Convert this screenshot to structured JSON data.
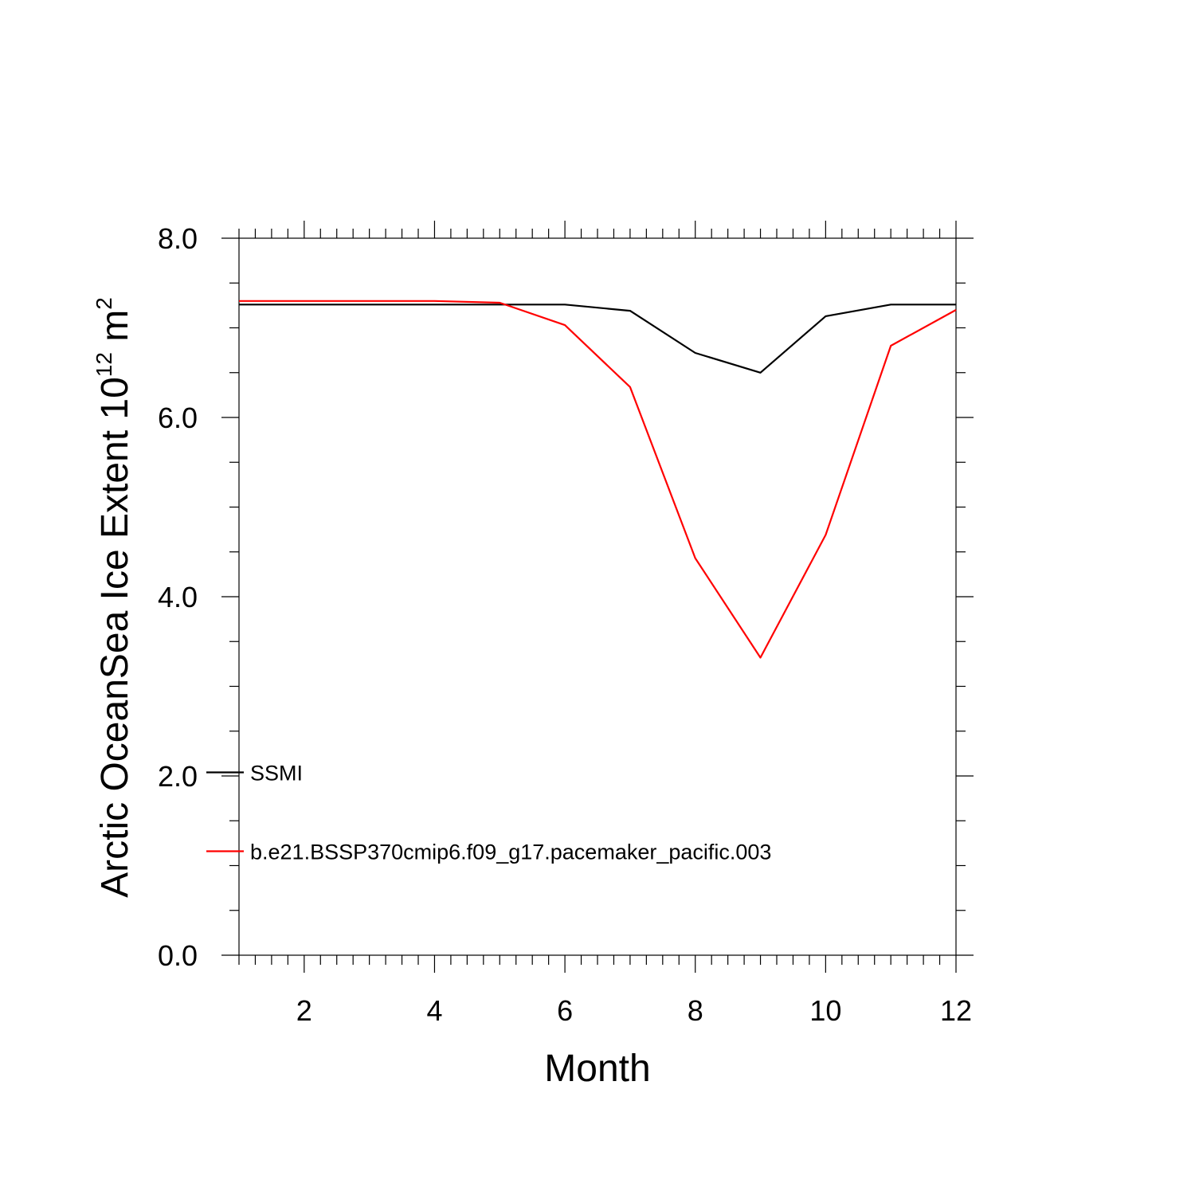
{
  "chart_data": {
    "type": "line",
    "xlabel": "Month",
    "ylabel": "Arctic OceanSea Ice Extent 10",
    "ylabel_exponent": "12",
    "ylabel_unit": " m",
    "ylabel_unit_exponent": "2",
    "xlim": [
      1,
      12
    ],
    "ylim": [
      0,
      8
    ],
    "x_ticks": [
      2,
      4,
      6,
      8,
      10,
      12
    ],
    "x_tick_labels": [
      "2",
      "4",
      "6",
      "8",
      "10",
      "12"
    ],
    "y_ticks": [
      0,
      2,
      4,
      6,
      8
    ],
    "y_tick_labels": [
      "0.0",
      "2.0",
      "4.0",
      "6.0",
      "8.0"
    ],
    "grid": false,
    "legend_position": "inside-left",
    "x": [
      1,
      2,
      3,
      4,
      5,
      6,
      7,
      8,
      9,
      10,
      11,
      12
    ],
    "series": [
      {
        "name": "SSMI",
        "color": "#000000",
        "values": [
          7.26,
          7.26,
          7.26,
          7.26,
          7.26,
          7.26,
          7.19,
          6.72,
          6.5,
          7.13,
          7.26,
          7.26
        ]
      },
      {
        "name": "b.e21.BSSP370cmip6.f09_g17.pacemaker_pacific.003",
        "color": "#ff0000",
        "values": [
          7.3,
          7.3,
          7.3,
          7.3,
          7.28,
          7.03,
          6.34,
          4.43,
          3.32,
          4.69,
          6.8,
          7.2
        ]
      }
    ]
  }
}
